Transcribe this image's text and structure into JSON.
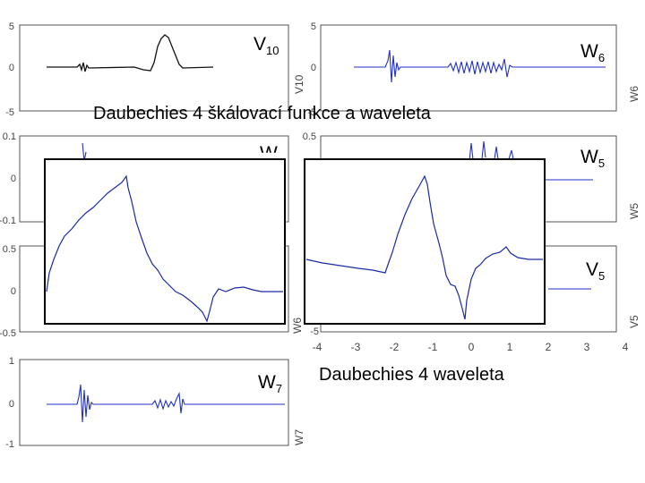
{
  "caption_top": "Daubechies 4 škálovací funkce a waveleta",
  "caption_bottom": "Daubechies 4 waveleta",
  "labels": {
    "v10_main": "V",
    "v10_sub": "10",
    "w6_main": "W",
    "w6_sub": "6",
    "w_hidden_main": "W",
    "w5_main": "W",
    "w5_sub": "5",
    "v5_main": "V",
    "v5_sub": "5",
    "w7_main": "W",
    "w7_sub": "7"
  },
  "colors": {
    "blue": "#2030c8",
    "black": "#111111",
    "axis": "#444444"
  },
  "chart_data": [
    {
      "type": "line",
      "title": "V10",
      "y_ticks": [
        "5",
        "0",
        "-5"
      ],
      "ylabel": "V10",
      "color": "#111111"
    },
    {
      "type": "line",
      "title": "W6",
      "y_ticks": [
        "5",
        "0",
        "-5"
      ],
      "ylabel": "W6",
      "color": "#2030c8"
    },
    {
      "type": "line",
      "title": "W",
      "y_ticks": [
        "0.1",
        "0",
        "-0.1"
      ],
      "color": "#2030c8"
    },
    {
      "type": "line",
      "title": "W5",
      "y_ticks": [
        "0.5"
      ],
      "ylabel": "W5",
      "color": "#2030c8"
    },
    {
      "type": "line",
      "title": "",
      "y_ticks": [
        "0.5",
        "0",
        "-0.5"
      ],
      "ylabel": "W6",
      "color": "#2030c8"
    },
    {
      "type": "line",
      "title": "V5",
      "y_ticks": [
        "-5"
      ],
      "ylabel": "V5",
      "x_ticks": [
        "-4",
        "-3",
        "-2",
        "-1",
        "0",
        "1",
        "2",
        "3",
        "4"
      ],
      "xlim": [
        -4,
        4
      ],
      "color": "#2030c8"
    },
    {
      "type": "line",
      "title": "W7",
      "y_ticks": [
        "1",
        "0",
        "-1"
      ],
      "ylabel": "W7",
      "color": "#2030c8"
    }
  ]
}
